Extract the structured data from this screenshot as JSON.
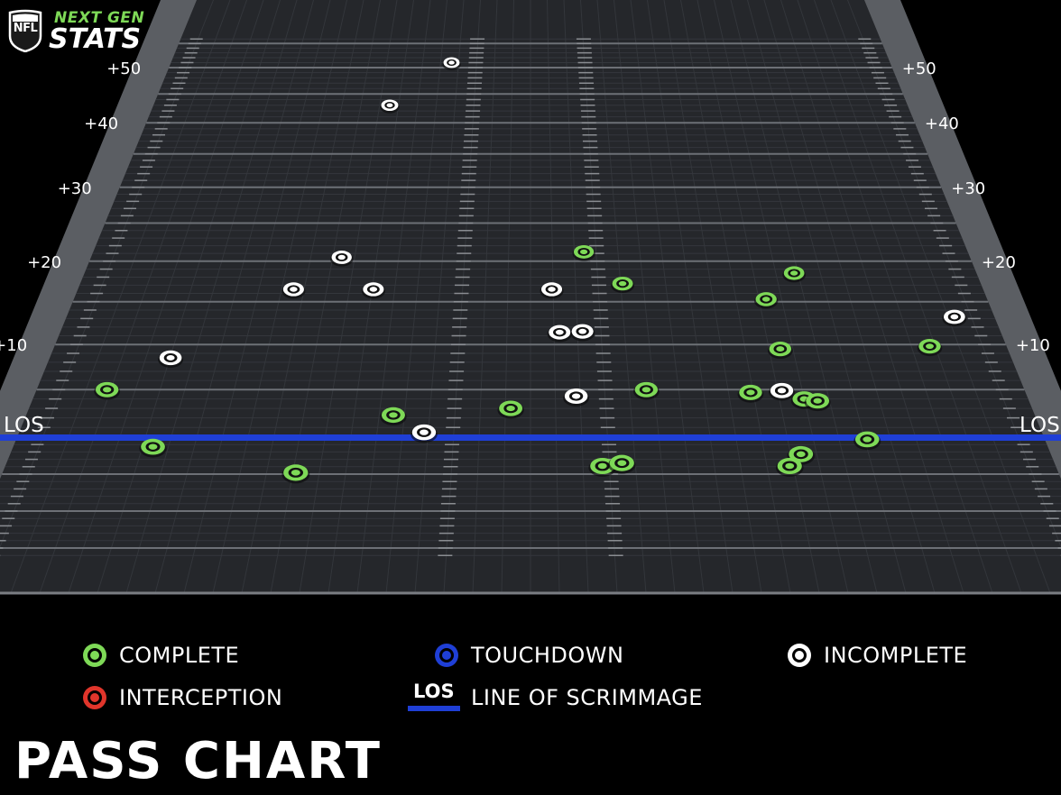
{
  "brand": {
    "league": "NFL",
    "line1": "NEXT GEN",
    "line2": "STATS"
  },
  "title": "PASS CHART",
  "los_label": "LOS",
  "colors": {
    "complete": "#7ed957",
    "touchdown": "#1f3fd6",
    "incomplete": "#ffffff",
    "interception": "#e0352b",
    "los_line": "#1f3fd6"
  },
  "legend": {
    "complete": "COMPLETE",
    "touchdown": "TOUCHDOWN",
    "incomplete": "INCOMPLETE",
    "interception": "INTERCEPTION",
    "los_icon": "LOS",
    "los": "LINE OF SCRIMMAGE"
  },
  "chart_data": {
    "type": "scatter",
    "title": "PASS CHART",
    "x_description": "field width (0 = left sideline, 53.3 = right sideline)",
    "y_description": "air yards relative to line of scrimmage",
    "yticks": [
      "+10",
      "+20",
      "+30",
      "+40",
      "+50"
    ],
    "ylim": [
      -10,
      53
    ],
    "xlim": [
      0,
      53.3
    ],
    "los_label": "LOS",
    "series": [
      {
        "name": "COMPLETE",
        "color": "#7ed957",
        "points": [
          {
            "x": 3.8,
            "y": 5.0
          },
          {
            "x": 19.4,
            "y": 2.3
          },
          {
            "x": 25.6,
            "y": 3.0
          },
          {
            "x": 29.9,
            "y": 21.2
          },
          {
            "x": 32.1,
            "y": 17.2
          },
          {
            "x": 32.9,
            "y": 5.0
          },
          {
            "x": 42.4,
            "y": 18.5
          },
          {
            "x": 40.4,
            "y": 15.3
          },
          {
            "x": 40.6,
            "y": 9.5
          },
          {
            "x": 49.0,
            "y": 9.8
          },
          {
            "x": 38.5,
            "y": 4.7
          },
          {
            "x": 41.3,
            "y": 4.0
          },
          {
            "x": 42.0,
            "y": 3.8
          },
          {
            "x": 44.1,
            "y": -0.3
          },
          {
            "x": 7.2,
            "y": -1.3
          },
          {
            "x": 14.8,
            "y": -4.8
          },
          {
            "x": 30.3,
            "y": -3.9
          },
          {
            "x": 31.3,
            "y": -3.5
          },
          {
            "x": 40.5,
            "y": -2.3
          },
          {
            "x": 39.8,
            "y": -3.9
          }
        ]
      },
      {
        "name": "INCOMPLETE",
        "color": "#ffffff",
        "points": [
          {
            "x": 20.8,
            "y": 51.0
          },
          {
            "x": 16.7,
            "y": 43.0
          },
          {
            "x": 15.2,
            "y": 20.5
          },
          {
            "x": 12.7,
            "y": 16.5
          },
          {
            "x": 17.4,
            "y": 16.5
          },
          {
            "x": 27.9,
            "y": 16.5
          },
          {
            "x": 28.3,
            "y": 11.4
          },
          {
            "x": 29.6,
            "y": 11.5
          },
          {
            "x": 6.7,
            "y": 8.5
          },
          {
            "x": 29.1,
            "y": 4.3
          },
          {
            "x": 40.2,
            "y": 4.9
          },
          {
            "x": 51.0,
            "y": 13.2
          },
          {
            "x": 21.1,
            "y": 0.5
          }
        ]
      },
      {
        "name": "TOUCHDOWN",
        "color": "#1f3fd6",
        "points": []
      },
      {
        "name": "INTERCEPTION",
        "color": "#e0352b",
        "points": []
      }
    ]
  }
}
